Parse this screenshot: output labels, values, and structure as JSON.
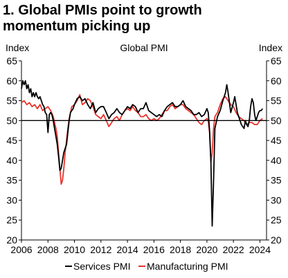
{
  "figure": {
    "title_line1": "1. Global PMIs point to growth",
    "title_line2": "momentum picking up"
  },
  "chart_data": {
    "type": "line",
    "title": "Global PMI",
    "ylabel_left": "Index",
    "ylabel_right": "Index",
    "xlabel": "",
    "xlim": [
      2006,
      2024.5
    ],
    "ylim": [
      20,
      65
    ],
    "x_ticks": [
      2006,
      2008,
      2010,
      2012,
      2014,
      2016,
      2018,
      2020,
      2022,
      2024
    ],
    "y_ticks": [
      20,
      25,
      30,
      35,
      40,
      45,
      50,
      55,
      60,
      65
    ],
    "reference_line": 50,
    "grid": false,
    "legend_position": "bottom",
    "colors": {
      "services": "#000000",
      "manufacturing": "#e8322b",
      "reference": "#000000"
    },
    "series": [
      {
        "name": "Services PMI",
        "x": [
          2006.0,
          2006.1,
          2006.2,
          2006.3,
          2006.4,
          2006.5,
          2006.6,
          2006.7,
          2006.8,
          2006.9,
          2007.0,
          2007.1,
          2007.2,
          2007.3,
          2007.4,
          2007.5,
          2007.6,
          2007.7,
          2007.8,
          2007.9,
          2008.0,
          2008.1,
          2008.2,
          2008.3,
          2008.4,
          2008.5,
          2008.6,
          2008.7,
          2008.8,
          2008.9,
          2009.0,
          2009.1,
          2009.2,
          2009.3,
          2009.4,
          2009.5,
          2009.6,
          2009.7,
          2009.8,
          2009.9,
          2010.0,
          2010.2,
          2010.4,
          2010.6,
          2010.8,
          2011.0,
          2011.2,
          2011.4,
          2011.6,
          2011.8,
          2012.0,
          2012.2,
          2012.4,
          2012.6,
          2012.8,
          2013.0,
          2013.2,
          2013.4,
          2013.6,
          2013.8,
          2014.0,
          2014.2,
          2014.4,
          2014.6,
          2014.8,
          2015.0,
          2015.2,
          2015.4,
          2015.6,
          2015.8,
          2016.0,
          2016.2,
          2016.4,
          2016.6,
          2016.8,
          2017.0,
          2017.2,
          2017.4,
          2017.6,
          2017.8,
          2018.0,
          2018.2,
          2018.4,
          2018.6,
          2018.8,
          2019.0,
          2019.2,
          2019.4,
          2019.6,
          2019.8,
          2020.0,
          2020.1,
          2020.2,
          2020.3,
          2020.4,
          2020.5,
          2020.6,
          2020.8,
          2021.0,
          2021.2,
          2021.4,
          2021.5,
          2021.6,
          2021.8,
          2022.0,
          2022.1,
          2022.2,
          2022.3,
          2022.4,
          2022.5,
          2022.6,
          2022.7,
          2022.8,
          2022.9,
          2023.0,
          2023.1,
          2023.2,
          2023.3,
          2023.4,
          2023.5,
          2023.6,
          2023.7,
          2023.8,
          2023.9,
          2024.0,
          2024.1,
          2024.2
        ],
        "values": [
          58.0,
          60.0,
          59.0,
          60.0,
          58.0,
          59.0,
          57.0,
          58.0,
          56.0,
          57.0,
          56.0,
          57.0,
          56.0,
          55.5,
          56.0,
          55.0,
          54.0,
          53.5,
          52.0,
          51.5,
          47.0,
          51.5,
          52.0,
          51.5,
          50.0,
          48.0,
          46.0,
          44.0,
          41.0,
          37.5,
          38.0,
          40.0,
          42.0,
          43.0,
          44.0,
          47.0,
          50.0,
          52.0,
          52.5,
          53.0,
          54.0,
          55.5,
          56.0,
          55.0,
          55.5,
          54.0,
          53.0,
          54.5,
          52.0,
          53.0,
          53.5,
          53.5,
          52.0,
          50.5,
          51.5,
          52.0,
          53.0,
          52.0,
          51.5,
          52.5,
          53.5,
          53.0,
          54.0,
          53.5,
          52.0,
          53.0,
          53.0,
          54.5,
          52.5,
          52.0,
          51.5,
          51.0,
          51.5,
          51.0,
          52.5,
          53.5,
          54.0,
          54.5,
          53.5,
          53.5,
          54.0,
          55.0,
          53.5,
          53.0,
          52.5,
          51.5,
          51.5,
          52.0,
          51.0,
          51.5,
          53.0,
          52.0,
          47.5,
          40.0,
          23.5,
          35.0,
          48.0,
          51.0,
          52.5,
          55.0,
          57.0,
          59.0,
          57.0,
          52.0,
          54.5,
          56.0,
          54.0,
          52.0,
          51.0,
          50.0,
          49.0,
          48.5,
          48.0,
          50.0,
          49.0,
          48.5,
          50.0,
          53.5,
          55.5,
          54.5,
          51.5,
          50.0,
          51.0,
          52.0,
          52.5,
          52.5,
          53.0
        ]
      },
      {
        "name": "Manufacturing PMI",
        "x": [
          2006.0,
          2006.2,
          2006.4,
          2006.6,
          2006.8,
          2007.0,
          2007.2,
          2007.4,
          2007.6,
          2007.8,
          2008.0,
          2008.2,
          2008.4,
          2008.5,
          2008.6,
          2008.7,
          2008.8,
          2008.9,
          2009.0,
          2009.1,
          2009.2,
          2009.3,
          2009.4,
          2009.5,
          2009.6,
          2009.7,
          2009.8,
          2010.0,
          2010.2,
          2010.4,
          2010.6,
          2010.8,
          2011.0,
          2011.2,
          2011.4,
          2011.6,
          2011.8,
          2012.0,
          2012.2,
          2012.4,
          2012.6,
          2012.8,
          2013.0,
          2013.2,
          2013.4,
          2013.6,
          2013.8,
          2014.0,
          2014.2,
          2014.4,
          2014.6,
          2014.8,
          2015.0,
          2015.2,
          2015.4,
          2015.6,
          2015.8,
          2016.0,
          2016.2,
          2016.4,
          2016.6,
          2016.8,
          2017.0,
          2017.2,
          2017.4,
          2017.6,
          2017.8,
          2018.0,
          2018.2,
          2018.4,
          2018.6,
          2018.8,
          2019.0,
          2019.2,
          2019.4,
          2019.6,
          2019.8,
          2020.0,
          2020.1,
          2020.2,
          2020.3,
          2020.4,
          2020.5,
          2020.6,
          2020.8,
          2021.0,
          2021.2,
          2021.4,
          2021.6,
          2021.8,
          2022.0,
          2022.2,
          2022.4,
          2022.6,
          2022.8,
          2023.0,
          2023.2,
          2023.4,
          2023.6,
          2023.8,
          2024.0,
          2024.2
        ],
        "values": [
          54.5,
          55.0,
          54.0,
          54.5,
          53.5,
          54.0,
          53.0,
          54.0,
          52.5,
          53.0,
          53.5,
          52.5,
          51.0,
          49.5,
          48.0,
          46.0,
          42.0,
          38.0,
          34.0,
          35.0,
          38.0,
          42.0,
          45.0,
          48.0,
          50.5,
          52.0,
          53.5,
          54.0,
          55.0,
          56.5,
          54.0,
          54.5,
          55.5,
          55.0,
          53.5,
          51.5,
          51.0,
          50.5,
          51.5,
          50.0,
          48.5,
          49.5,
          50.5,
          51.0,
          50.0,
          51.5,
          52.5,
          53.0,
          52.5,
          53.5,
          52.5,
          52.0,
          51.0,
          51.0,
          51.5,
          50.5,
          50.0,
          50.5,
          50.0,
          50.5,
          51.5,
          52.5,
          52.5,
          53.5,
          54.0,
          53.0,
          53.5,
          54.0,
          54.0,
          53.0,
          52.5,
          52.0,
          51.5,
          50.5,
          49.5,
          49.0,
          50.0,
          50.5,
          50.0,
          47.0,
          39.5,
          42.0,
          48.0,
          51.0,
          52.0,
          54.0,
          55.5,
          56.0,
          55.0,
          54.0,
          53.5,
          52.0,
          51.0,
          50.5,
          50.0,
          49.0,
          49.5,
          49.5,
          49.0,
          49.0,
          50.0,
          50.5
        ]
      }
    ]
  }
}
